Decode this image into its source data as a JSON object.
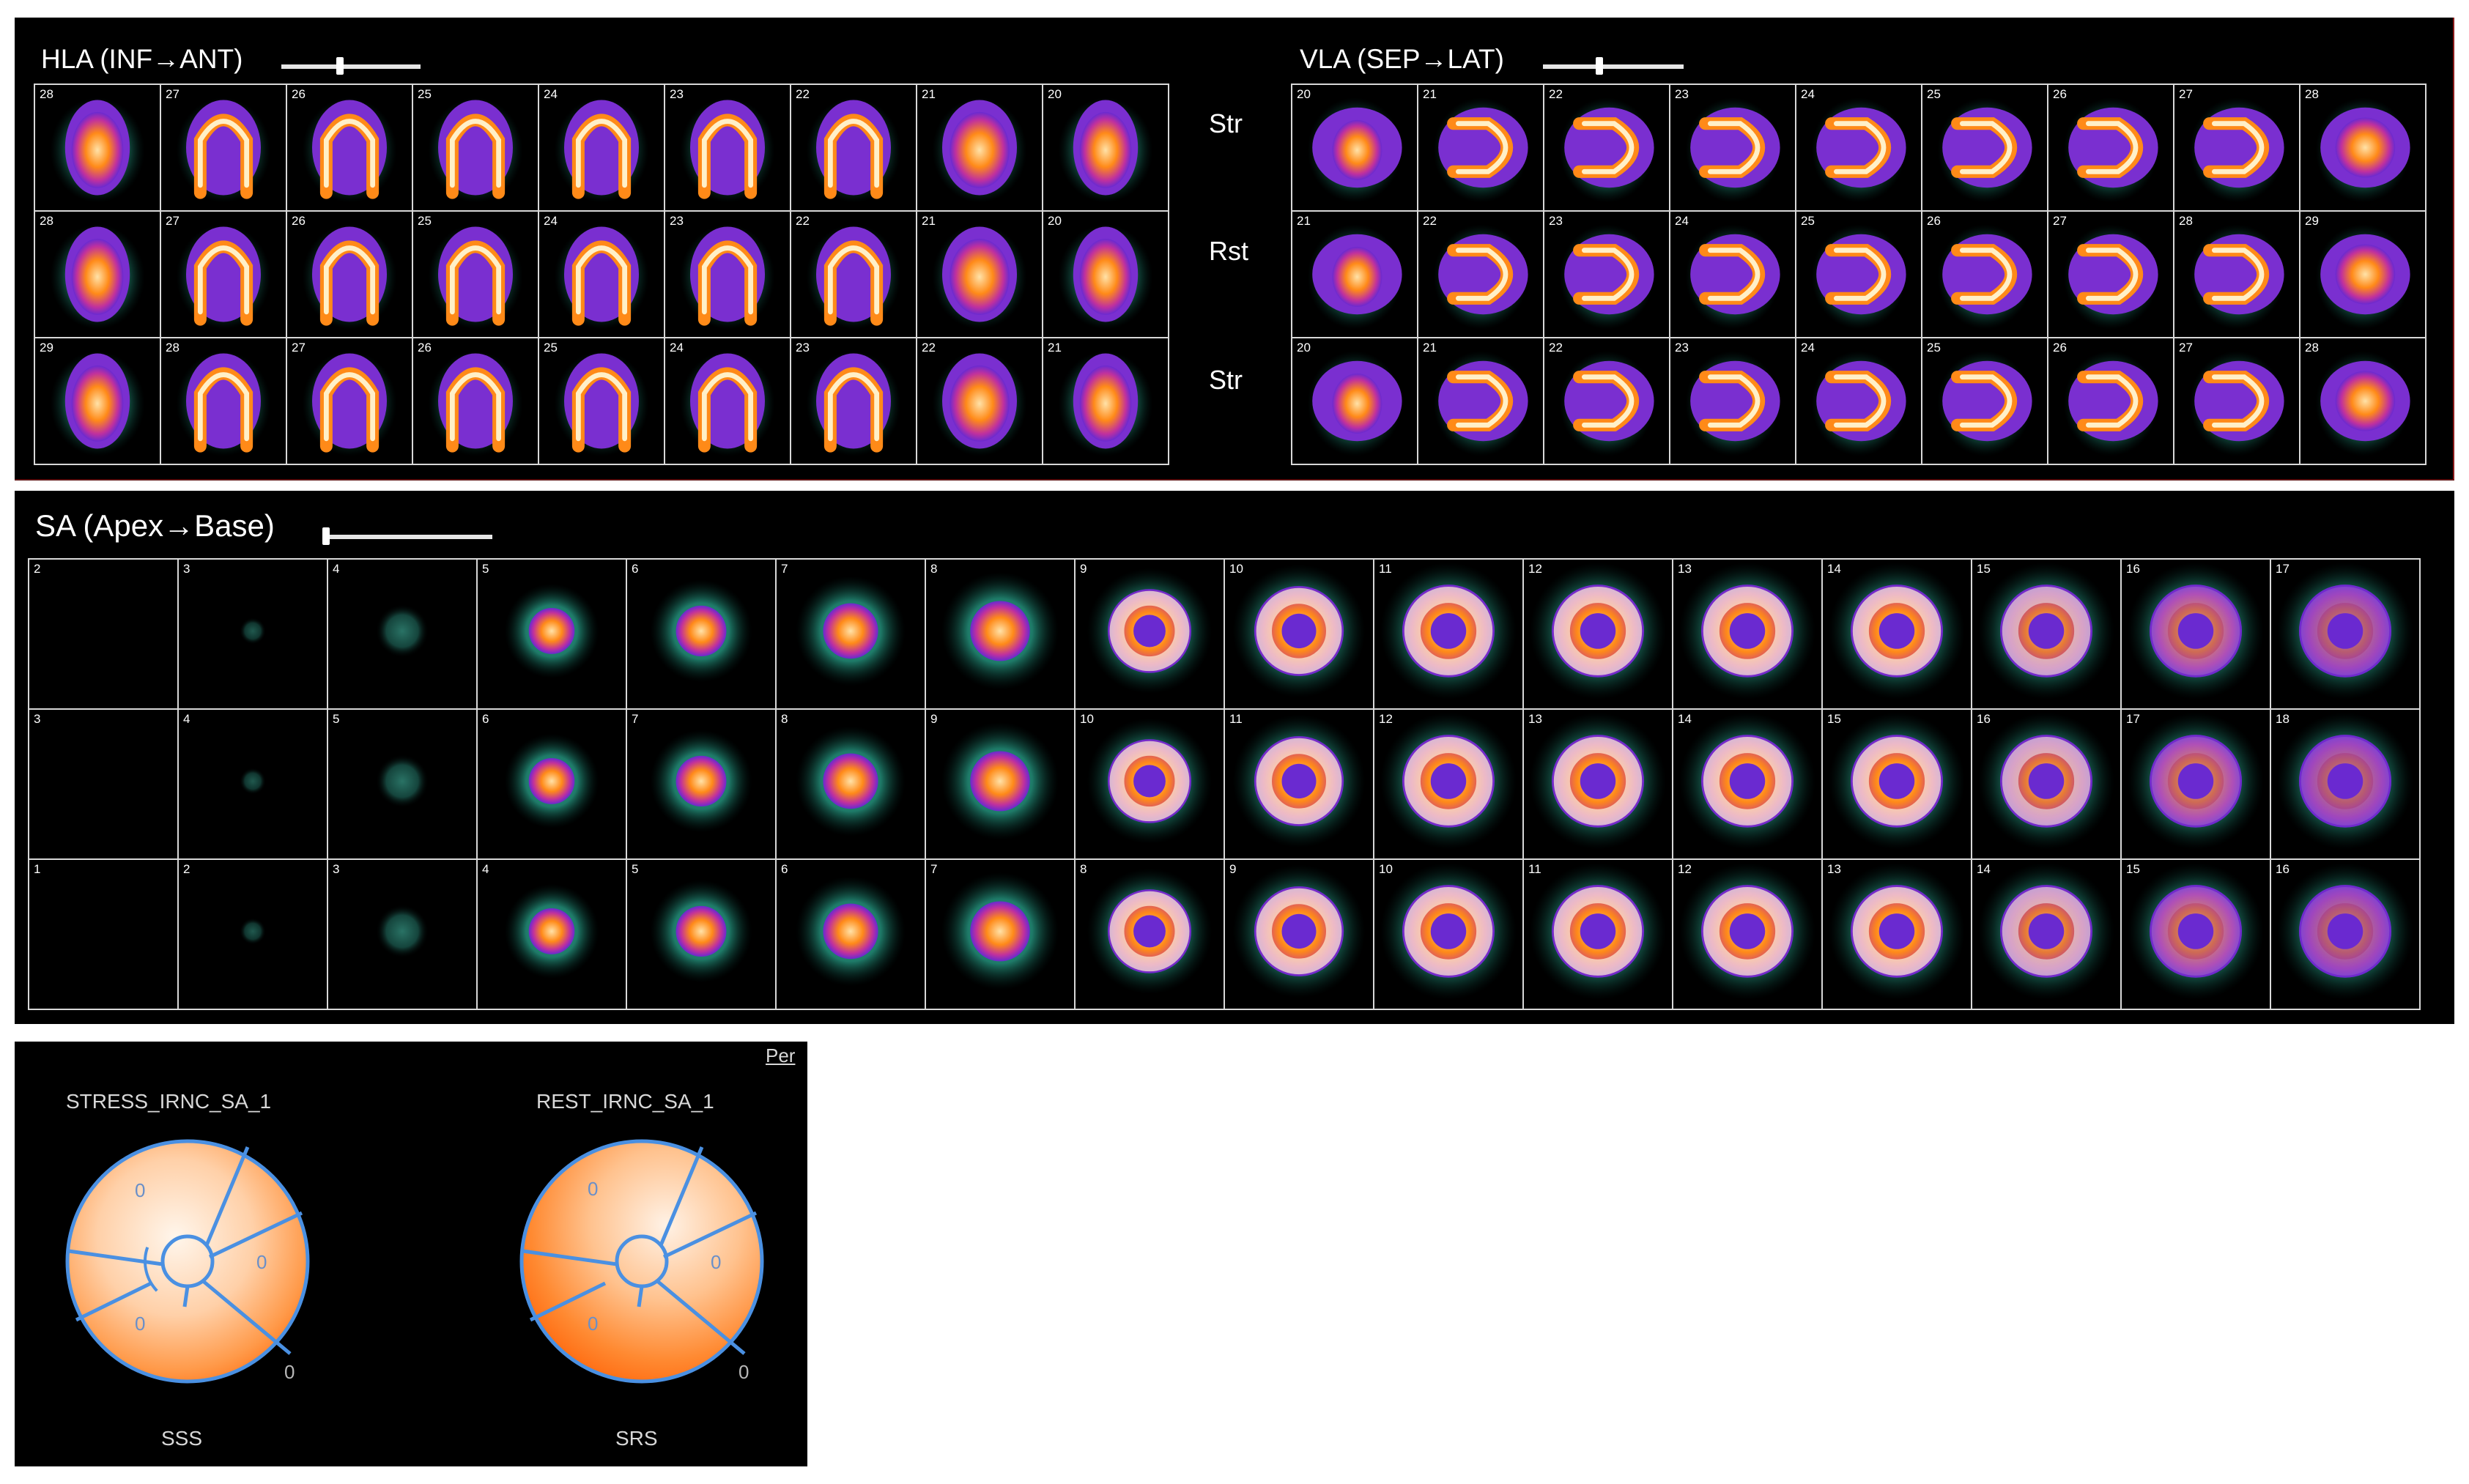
{
  "hla": {
    "title": "HLA (INF→ANT)",
    "slider_value": 0.42,
    "rows": [
      {
        "slices": [
          "28",
          "27",
          "26",
          "25",
          "24",
          "23",
          "22",
          "21",
          "20"
        ]
      },
      {
        "slices": [
          "28",
          "27",
          "26",
          "25",
          "24",
          "23",
          "22",
          "21",
          "20"
        ]
      },
      {
        "slices": [
          "29",
          "28",
          "27",
          "26",
          "25",
          "24",
          "23",
          "22",
          "21"
        ]
      }
    ]
  },
  "row_labels": [
    "Str",
    "Rst",
    "Str"
  ],
  "vla": {
    "title": "VLA (SEP→LAT)",
    "slider_value": 0.4,
    "rows": [
      {
        "slices": [
          "20",
          "21",
          "22",
          "23",
          "24",
          "25",
          "26",
          "27",
          "28"
        ]
      },
      {
        "slices": [
          "21",
          "22",
          "23",
          "24",
          "25",
          "26",
          "27",
          "28",
          "29"
        ]
      },
      {
        "slices": [
          "20",
          "21",
          "22",
          "23",
          "24",
          "25",
          "26",
          "27",
          "28"
        ]
      }
    ]
  },
  "sa": {
    "title": "SA (Apex→Base)",
    "slider_value": 0.0,
    "rows": [
      {
        "slices": [
          "2",
          "3",
          "4",
          "5",
          "6",
          "7",
          "8",
          "9",
          "10",
          "11",
          "12",
          "13",
          "14",
          "15",
          "16",
          "17"
        ]
      },
      {
        "slices": [
          "3",
          "4",
          "5",
          "6",
          "7",
          "8",
          "9",
          "10",
          "11",
          "12",
          "13",
          "14",
          "15",
          "16",
          "17",
          "18"
        ]
      },
      {
        "slices": [
          "1",
          "2",
          "3",
          "4",
          "5",
          "6",
          "7",
          "8",
          "9",
          "10",
          "11",
          "12",
          "13",
          "14",
          "15",
          "16"
        ]
      }
    ]
  },
  "bullseye": {
    "per_label": "Per",
    "stress": {
      "title": "STRESS_IRNC_SA_1",
      "score_label": "SSS",
      "score_value": "0",
      "segment_values": [
        "0",
        "0",
        "0"
      ]
    },
    "rest": {
      "title": "REST_IRNC_SA_1",
      "score_label": "SRS",
      "score_value": "0",
      "segment_values": [
        "0",
        "0",
        "0"
      ]
    }
  },
  "colors": {
    "panel_bg": "#000000",
    "grid_lines": "#d8d8d8",
    "segment_lines": "#4a90e2",
    "perfusion_low": "#1e8c72",
    "perfusion_mid": "#7a2fd0",
    "perfusion_high": "#ff8a10"
  }
}
